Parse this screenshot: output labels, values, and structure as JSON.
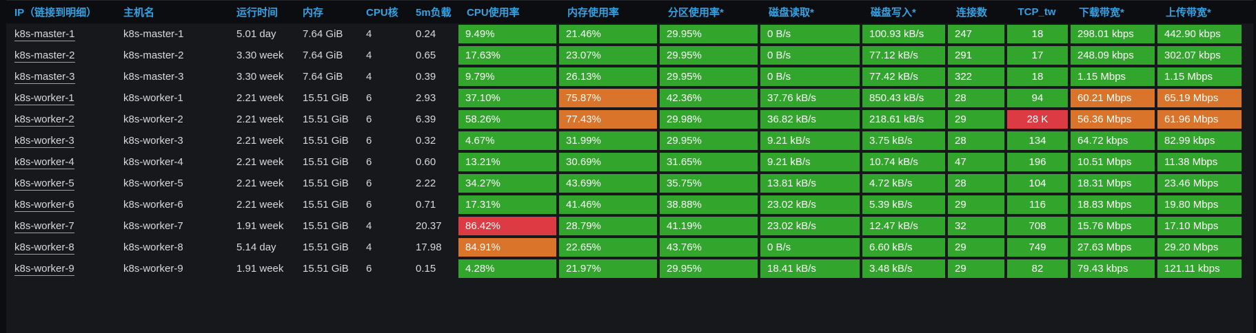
{
  "colors": {
    "green": "#32a62c",
    "orange": "#d9742a",
    "red": "#dd3b44",
    "header_text": "#33a2e5",
    "header_bg": "#0b0d10",
    "panel_bg": "#16181c",
    "row_text": "#d8d9da",
    "metric_text": "#ffffff"
  },
  "table": {
    "columns": [
      {
        "id": "ip",
        "label": "IP（链接到明细）",
        "type": "link"
      },
      {
        "id": "hostname",
        "label": "主机名"
      },
      {
        "id": "uptime",
        "label": "运行时间"
      },
      {
        "id": "memory",
        "label": "内存"
      },
      {
        "id": "cpu_cores",
        "label": "CPU核"
      },
      {
        "id": "load_5m",
        "label": "5m负载"
      },
      {
        "id": "cpu_usage",
        "label": "CPU使用率",
        "metric": true
      },
      {
        "id": "mem_usage",
        "label": "内存使用率",
        "metric": true
      },
      {
        "id": "partition_usage",
        "label": "分区使用率*",
        "metric": true
      },
      {
        "id": "disk_read",
        "label": "磁盘读取*",
        "metric": true
      },
      {
        "id": "disk_write",
        "label": "磁盘写入*",
        "metric": true
      },
      {
        "id": "connections",
        "label": "连接数",
        "metric": true
      },
      {
        "id": "tcp_tw",
        "label": "TCP_tw",
        "metric": true,
        "center": true
      },
      {
        "id": "download_bw",
        "label": "下载带宽*",
        "metric": true
      },
      {
        "id": "upload_bw",
        "label": "上传带宽*",
        "metric": true
      }
    ],
    "rows": [
      {
        "ip": "k8s-master-1",
        "hostname": "k8s-master-1",
        "uptime": "5.01 day",
        "memory": "7.64 GiB",
        "cpu_cores": "4",
        "load_5m": "0.24",
        "metrics": [
          [
            "9.49%",
            "green"
          ],
          [
            "21.46%",
            "green"
          ],
          [
            "29.95%",
            "green"
          ],
          [
            "0 B/s",
            "green"
          ],
          [
            "100.93 kB/s",
            "green"
          ],
          [
            "247",
            "green"
          ],
          [
            "18",
            "green"
          ],
          [
            "298.01 kbps",
            "green"
          ],
          [
            "442.90 kbps",
            "green"
          ]
        ]
      },
      {
        "ip": "k8s-master-2",
        "hostname": "k8s-master-2",
        "uptime": "3.30 week",
        "memory": "7.64 GiB",
        "cpu_cores": "4",
        "load_5m": "0.65",
        "metrics": [
          [
            "17.63%",
            "green"
          ],
          [
            "23.07%",
            "green"
          ],
          [
            "29.95%",
            "green"
          ],
          [
            "0 B/s",
            "green"
          ],
          [
            "77.12 kB/s",
            "green"
          ],
          [
            "291",
            "green"
          ],
          [
            "17",
            "green"
          ],
          [
            "248.09 kbps",
            "green"
          ],
          [
            "302.07 kbps",
            "green"
          ]
        ]
      },
      {
        "ip": "k8s-master-3",
        "hostname": "k8s-master-3",
        "uptime": "3.30 week",
        "memory": "7.64 GiB",
        "cpu_cores": "4",
        "load_5m": "0.39",
        "metrics": [
          [
            "9.79%",
            "green"
          ],
          [
            "26.13%",
            "green"
          ],
          [
            "29.95%",
            "green"
          ],
          [
            "0 B/s",
            "green"
          ],
          [
            "77.42 kB/s",
            "green"
          ],
          [
            "322",
            "green"
          ],
          [
            "18",
            "green"
          ],
          [
            "1.15 Mbps",
            "green"
          ],
          [
            "1.15 Mbps",
            "green"
          ]
        ]
      },
      {
        "ip": "k8s-worker-1",
        "hostname": "k8s-worker-1",
        "uptime": "2.21 week",
        "memory": "15.51 GiB",
        "cpu_cores": "6",
        "load_5m": "2.93",
        "metrics": [
          [
            "37.10%",
            "green"
          ],
          [
            "75.87%",
            "orange"
          ],
          [
            "42.36%",
            "green"
          ],
          [
            "37.76 kB/s",
            "green"
          ],
          [
            "850.43 kB/s",
            "green"
          ],
          [
            "28",
            "green"
          ],
          [
            "94",
            "green"
          ],
          [
            "60.21 Mbps",
            "orange"
          ],
          [
            "65.19 Mbps",
            "orange"
          ]
        ]
      },
      {
        "ip": "k8s-worker-2",
        "hostname": "k8s-worker-2",
        "uptime": "2.21 week",
        "memory": "15.51 GiB",
        "cpu_cores": "6",
        "load_5m": "6.39",
        "metrics": [
          [
            "58.26%",
            "green"
          ],
          [
            "77.43%",
            "orange"
          ],
          [
            "29.98%",
            "green"
          ],
          [
            "36.82 kB/s",
            "green"
          ],
          [
            "218.61 kB/s",
            "green"
          ],
          [
            "29",
            "green"
          ],
          [
            "28 K",
            "red"
          ],
          [
            "56.36 Mbps",
            "orange"
          ],
          [
            "61.96 Mbps",
            "orange"
          ]
        ]
      },
      {
        "ip": "k8s-worker-3",
        "hostname": "k8s-worker-3",
        "uptime": "2.21 week",
        "memory": "15.51 GiB",
        "cpu_cores": "6",
        "load_5m": "0.32",
        "metrics": [
          [
            "4.67%",
            "green"
          ],
          [
            "31.99%",
            "green"
          ],
          [
            "29.95%",
            "green"
          ],
          [
            "9.21 kB/s",
            "green"
          ],
          [
            "3.75 kB/s",
            "green"
          ],
          [
            "28",
            "green"
          ],
          [
            "134",
            "green"
          ],
          [
            "64.72 kbps",
            "green"
          ],
          [
            "82.99 kbps",
            "green"
          ]
        ]
      },
      {
        "ip": "k8s-worker-4",
        "hostname": "k8s-worker-4",
        "uptime": "2.21 week",
        "memory": "15.51 GiB",
        "cpu_cores": "6",
        "load_5m": "0.60",
        "metrics": [
          [
            "13.21%",
            "green"
          ],
          [
            "30.69%",
            "green"
          ],
          [
            "31.65%",
            "green"
          ],
          [
            "9.21 kB/s",
            "green"
          ],
          [
            "10.74 kB/s",
            "green"
          ],
          [
            "47",
            "green"
          ],
          [
            "196",
            "green"
          ],
          [
            "10.51 Mbps",
            "green"
          ],
          [
            "11.38 Mbps",
            "green"
          ]
        ]
      },
      {
        "ip": "k8s-worker-5",
        "hostname": "k8s-worker-5",
        "uptime": "2.21 week",
        "memory": "15.51 GiB",
        "cpu_cores": "6",
        "load_5m": "2.22",
        "metrics": [
          [
            "34.27%",
            "green"
          ],
          [
            "43.69%",
            "green"
          ],
          [
            "35.75%",
            "green"
          ],
          [
            "13.81 kB/s",
            "green"
          ],
          [
            "4.72 kB/s",
            "green"
          ],
          [
            "28",
            "green"
          ],
          [
            "104",
            "green"
          ],
          [
            "18.31 Mbps",
            "green"
          ],
          [
            "23.46 Mbps",
            "green"
          ]
        ]
      },
      {
        "ip": "k8s-worker-6",
        "hostname": "k8s-worker-6",
        "uptime": "2.21 week",
        "memory": "15.51 GiB",
        "cpu_cores": "6",
        "load_5m": "0.71",
        "metrics": [
          [
            "17.31%",
            "green"
          ],
          [
            "41.46%",
            "green"
          ],
          [
            "38.88%",
            "green"
          ],
          [
            "23.02 kB/s",
            "green"
          ],
          [
            "5.39 kB/s",
            "green"
          ],
          [
            "29",
            "green"
          ],
          [
            "116",
            "green"
          ],
          [
            "18.83 Mbps",
            "green"
          ],
          [
            "19.80 Mbps",
            "green"
          ]
        ]
      },
      {
        "ip": "k8s-worker-7",
        "hostname": "k8s-worker-7",
        "uptime": "1.91 week",
        "memory": "15.51 GiB",
        "cpu_cores": "4",
        "load_5m": "20.37",
        "metrics": [
          [
            "86.42%",
            "red"
          ],
          [
            "28.79%",
            "green"
          ],
          [
            "41.19%",
            "green"
          ],
          [
            "23.02 kB/s",
            "green"
          ],
          [
            "12.47 kB/s",
            "green"
          ],
          [
            "32",
            "green"
          ],
          [
            "708",
            "green"
          ],
          [
            "15.76 Mbps",
            "green"
          ],
          [
            "17.10 Mbps",
            "green"
          ]
        ]
      },
      {
        "ip": "k8s-worker-8",
        "hostname": "k8s-worker-8",
        "uptime": "5.14 day",
        "memory": "15.51 GiB",
        "cpu_cores": "4",
        "load_5m": "17.98",
        "metrics": [
          [
            "84.91%",
            "orange"
          ],
          [
            "22.65%",
            "green"
          ],
          [
            "43.76%",
            "green"
          ],
          [
            "0 B/s",
            "green"
          ],
          [
            "6.60 kB/s",
            "green"
          ],
          [
            "29",
            "green"
          ],
          [
            "749",
            "green"
          ],
          [
            "27.63 Mbps",
            "green"
          ],
          [
            "29.20 Mbps",
            "green"
          ]
        ]
      },
      {
        "ip": "k8s-worker-9",
        "hostname": "k8s-worker-9",
        "uptime": "1.91 week",
        "memory": "15.51 GiB",
        "cpu_cores": "6",
        "load_5m": "0.15",
        "metrics": [
          [
            "4.28%",
            "green"
          ],
          [
            "21.97%",
            "green"
          ],
          [
            "29.95%",
            "green"
          ],
          [
            "18.41 kB/s",
            "green"
          ],
          [
            "3.48 kB/s",
            "green"
          ],
          [
            "29",
            "green"
          ],
          [
            "82",
            "green"
          ],
          [
            "79.43 kbps",
            "green"
          ],
          [
            "121.11 kbps",
            "green"
          ]
        ]
      }
    ]
  }
}
